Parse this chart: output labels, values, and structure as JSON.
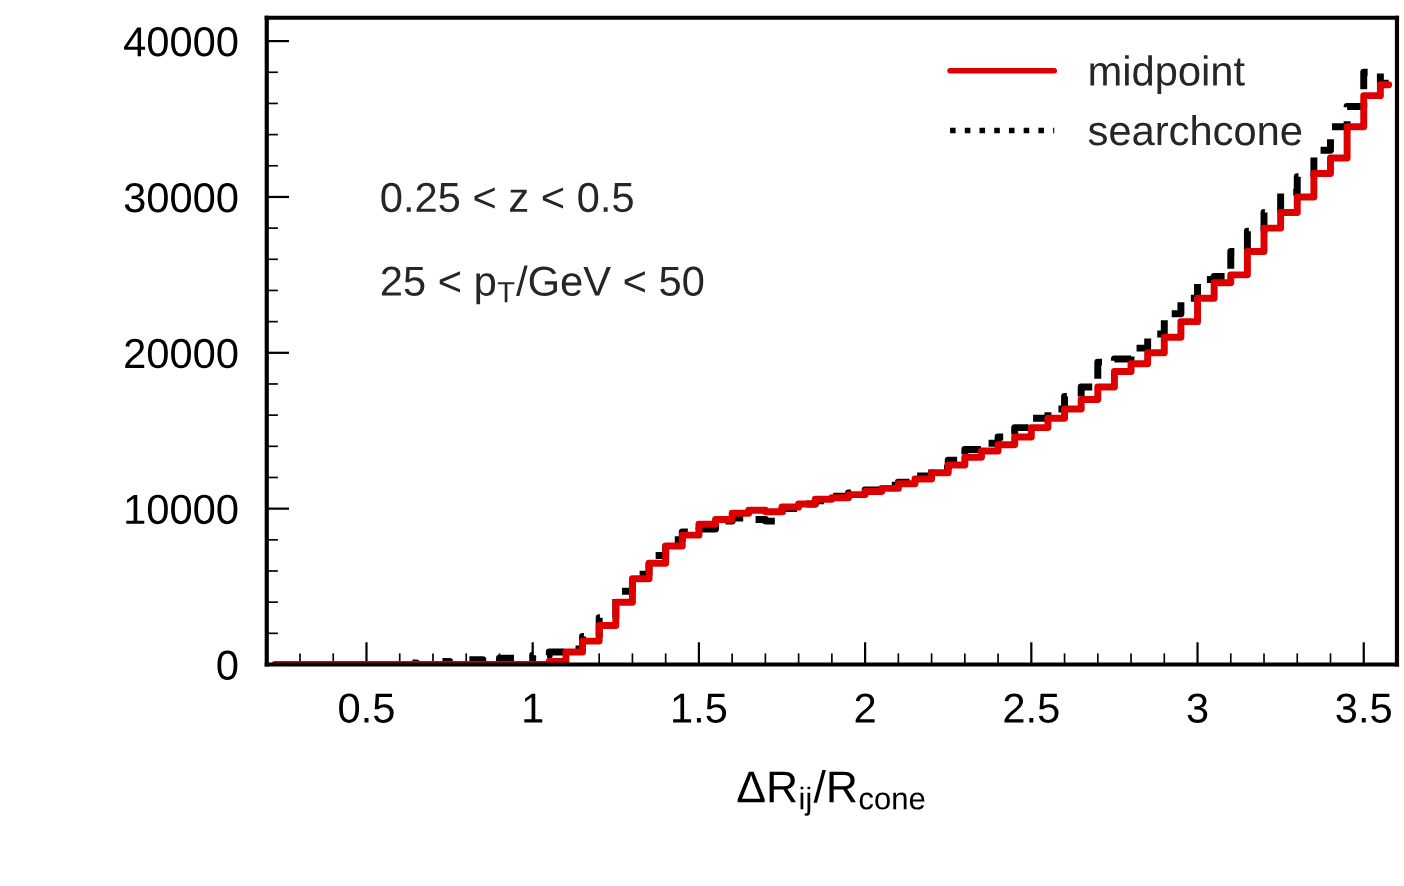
{
  "chart_data": {
    "type": "step",
    "xlabel": "ΔR$_{ij}$/R$_{cone}$",
    "x": [
      0.225,
      0.275,
      0.325,
      0.375,
      0.425,
      0.475,
      0.525,
      0.575,
      0.625,
      0.675,
      0.725,
      0.775,
      0.825,
      0.875,
      0.925,
      0.975,
      1.025,
      1.075,
      1.125,
      1.175,
      1.225,
      1.275,
      1.325,
      1.375,
      1.425,
      1.475,
      1.525,
      1.575,
      1.625,
      1.675,
      1.725,
      1.775,
      1.825,
      1.875,
      1.925,
      1.975,
      2.025,
      2.075,
      2.125,
      2.175,
      2.225,
      2.275,
      2.325,
      2.375,
      2.425,
      2.475,
      2.525,
      2.575,
      2.625,
      2.675,
      2.725,
      2.775,
      2.825,
      2.875,
      2.925,
      2.975,
      3.025,
      3.075,
      3.125,
      3.175,
      3.225,
      3.275,
      3.325,
      3.375,
      3.425,
      3.475,
      3.525,
      3.575
    ],
    "series": [
      {
        "name": "midpoint",
        "color": "#dd0000",
        "line_style": "solid",
        "values": [
          0,
          0,
          0,
          0,
          0,
          0,
          0,
          0,
          0,
          0,
          0,
          0,
          0,
          0,
          0,
          0,
          0,
          200,
          800,
          1500,
          2500,
          4000,
          5500,
          6500,
          7600,
          8300,
          9000,
          9300,
          9700,
          9900,
          9800,
          10100,
          10300,
          10600,
          10700,
          10900,
          11100,
          11300,
          11600,
          11900,
          12300,
          12800,
          13300,
          13700,
          14100,
          14600,
          15200,
          15800,
          16400,
          17000,
          17800,
          18800,
          19300,
          20000,
          21000,
          22000,
          23500,
          24500,
          25000,
          26500,
          28000,
          29000,
          30000,
          31500,
          32500,
          34500,
          36500,
          37200
        ]
      },
      {
        "name": "searchcone",
        "color": "#000000",
        "line_style": "dashed",
        "values": [
          0,
          0,
          0,
          0,
          0,
          0,
          0,
          0,
          100,
          0,
          200,
          0,
          300,
          0,
          400,
          0,
          600,
          800,
          1000,
          1800,
          3000,
          4700,
          5800,
          7000,
          8000,
          8500,
          8700,
          9200,
          9400,
          9300,
          9200,
          10000,
          10300,
          10500,
          10800,
          11000,
          11200,
          11500,
          11700,
          12100,
          12600,
          13100,
          13800,
          14200,
          14600,
          15200,
          15800,
          16400,
          17200,
          17800,
          19400,
          19600,
          20300,
          21200,
          22500,
          23500,
          24700,
          24900,
          26500,
          27800,
          29000,
          30300,
          31300,
          33000,
          34500,
          35800,
          38000,
          37300
        ]
      }
    ],
    "xlim": [
      0.2,
      3.6
    ],
    "xticks": [
      0.5,
      1,
      1.5,
      2,
      2.5,
      3,
      3.5
    ],
    "ylim": [
      0,
      41500
    ],
    "yticks": [
      0,
      10000,
      20000,
      30000,
      40000
    ],
    "legend": "top right",
    "annotations": [
      "0.25 < z < 0.5",
      "25 < p$_{T}$/GeV < 50"
    ]
  }
}
